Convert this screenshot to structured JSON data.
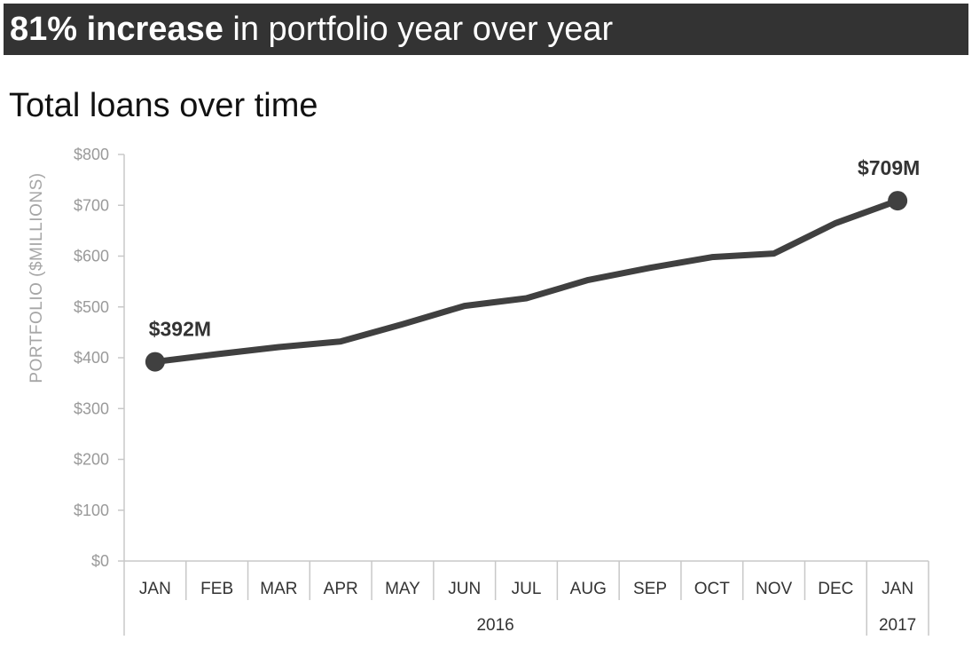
{
  "banner": {
    "highlight": "81% increase",
    "rest": "in portfolio year over year"
  },
  "chart_data": {
    "type": "line",
    "title": "Total loans over time",
    "ylabel": "PORTFOLIO ($MILLIONS)",
    "xlabel": "",
    "ylim": [
      0,
      800
    ],
    "yticks": [
      0,
      100,
      200,
      300,
      400,
      500,
      600,
      700,
      800
    ],
    "ytick_labels": [
      "$0",
      "$100",
      "$200",
      "$300",
      "$400",
      "$500",
      "$600",
      "$700",
      "$800"
    ],
    "categories": [
      "JAN",
      "FEB",
      "MAR",
      "APR",
      "MAY",
      "JUN",
      "JUL",
      "AUG",
      "SEP",
      "OCT",
      "NOV",
      "DEC",
      "JAN"
    ],
    "year_groups": [
      {
        "label": "2016",
        "count": 12
      },
      {
        "label": "2017",
        "count": 1
      }
    ],
    "series": [
      {
        "values": [
          392,
          407,
          421,
          432,
          466,
          502,
          517,
          553,
          577,
          598,
          605,
          665,
          709
        ],
        "color": "#404040"
      }
    ],
    "markers": [
      {
        "index": 0,
        "label": "$392M"
      },
      {
        "index": 12,
        "label": "$709M"
      }
    ],
    "grid": false,
    "legend": "none"
  }
}
